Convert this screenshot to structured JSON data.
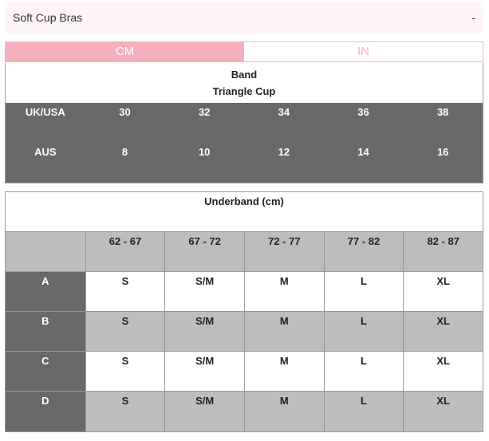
{
  "accordion": {
    "title": "Soft Cup Bras",
    "toggle": "-"
  },
  "units": {
    "cm": "CM",
    "in": "IN"
  },
  "band_table": {
    "title_line1": "Band",
    "title_line2": "Triangle Cup",
    "rows": [
      {
        "label": "UK/USA",
        "values": [
          "30",
          "32",
          "34",
          "36",
          "38"
        ]
      },
      {
        "label": "AUS",
        "values": [
          "8",
          "10",
          "12",
          "14",
          "16"
        ]
      }
    ]
  },
  "underband_table": {
    "title": "Underband (cm)",
    "corner": "",
    "columns": [
      "62 - 67",
      "67 - 72",
      "72 - 77",
      "77 - 82",
      "82 - 87"
    ],
    "rows": [
      {
        "label": "A",
        "values": [
          "S",
          "S/M",
          "M",
          "L",
          "XL"
        ]
      },
      {
        "label": "B",
        "values": [
          "S",
          "S/M",
          "M",
          "L",
          "XL"
        ]
      },
      {
        "label": "C",
        "values": [
          "S",
          "S/M",
          "M",
          "L",
          "XL"
        ]
      },
      {
        "label": "D",
        "values": [
          "S",
          "S/M",
          "M",
          "L",
          "XL"
        ]
      }
    ]
  },
  "colors": {
    "pink": "#f5b0bd",
    "dark_gray": "#696969",
    "light_gray": "#bdbdbd",
    "accordion_bg": "#fff5f8"
  }
}
